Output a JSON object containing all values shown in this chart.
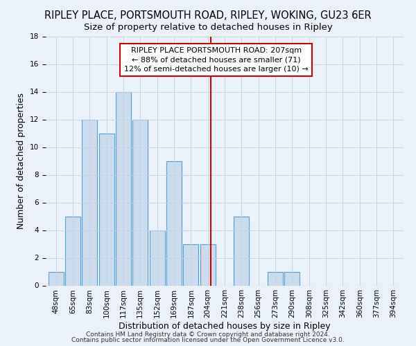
{
  "title": "RIPLEY PLACE, PORTSMOUTH ROAD, RIPLEY, WOKING, GU23 6ER",
  "subtitle": "Size of property relative to detached houses in Ripley",
  "xlabel": "Distribution of detached houses by size in Ripley",
  "ylabel": "Number of detached properties",
  "categories": [
    "48sqm",
    "65sqm",
    "83sqm",
    "100sqm",
    "117sqm",
    "135sqm",
    "152sqm",
    "169sqm",
    "187sqm",
    "204sqm",
    "221sqm",
    "238sqm",
    "256sqm",
    "273sqm",
    "290sqm",
    "308sqm",
    "325sqm",
    "342sqm",
    "360sqm",
    "377sqm",
    "394sqm"
  ],
  "values": [
    1,
    5,
    12,
    11,
    14,
    12,
    4,
    9,
    3,
    3,
    0,
    5,
    0,
    1,
    1,
    0,
    0,
    0,
    0,
    0,
    0
  ],
  "bar_color": "#ccdcec",
  "bar_edge_color": "#5a9fd4",
  "marker_color": "#cc0000",
  "marker_pos_note": "between index 9 (204sqm) and 10 (221sqm), at 207sqm",
  "annotation_text": "RIPLEY PLACE PORTSMOUTH ROAD: 207sqm\n← 88% of detached houses are smaller (71)\n12% of semi-detached houses are larger (10) →",
  "annotation_box_edgecolor": "#cc0000",
  "ylim": [
    0,
    18
  ],
  "yticks": [
    0,
    2,
    4,
    6,
    8,
    10,
    12,
    14,
    16,
    18
  ],
  "footer_line1": "Contains HM Land Registry data © Crown copyright and database right 2024.",
  "footer_line2": "Contains public sector information licensed under the Open Government Licence v3.0.",
  "background_color": "#eaf1f8",
  "grid_color": "#c5d0dc",
  "title_fontsize": 10.5,
  "subtitle_fontsize": 9.5,
  "axis_label_fontsize": 9,
  "tick_fontsize": 7.5,
  "annotation_fontsize": 8,
  "footer_fontsize": 6.5
}
